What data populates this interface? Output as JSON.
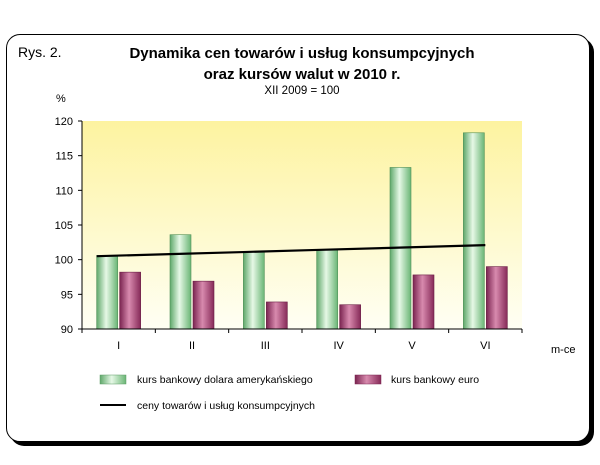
{
  "figure_label": "Rys. 2.",
  "chart_data": {
    "type": "bar",
    "title_lines": [
      "Dynamika cen towarów i usług konsumpcyjnych",
      "oraz kursów walut w 2010 r."
    ],
    "subtitle": "XII 2009 = 100",
    "ylabel": "%",
    "xlabel": "m-ce",
    "ylim": [
      90,
      120
    ],
    "yticks": [
      "90",
      "95",
      "100",
      "105",
      "110",
      "115",
      "120"
    ],
    "categories": [
      "I",
      "II",
      "III",
      "IV",
      "V",
      "VI"
    ],
    "series": [
      {
        "name": "kurs bankowy dolara amerykańskiego",
        "kind": "bar",
        "color": "#8fd19a",
        "values": [
          100.6,
          103.6,
          101.2,
          101.4,
          113.3,
          118.3
        ]
      },
      {
        "name": "kurs bankowy euro",
        "kind": "bar",
        "color": "#a84070",
        "values": [
          98.2,
          96.9,
          93.9,
          93.5,
          97.8,
          99.0
        ]
      },
      {
        "name": "ceny towarów i usług konsumpcyjnych",
        "kind": "line",
        "color": "#000000",
        "values": [
          100.5,
          100.8,
          101.1,
          101.4,
          101.7,
          102.1
        ]
      }
    ],
    "grid": false,
    "legend_position": "bottom"
  }
}
